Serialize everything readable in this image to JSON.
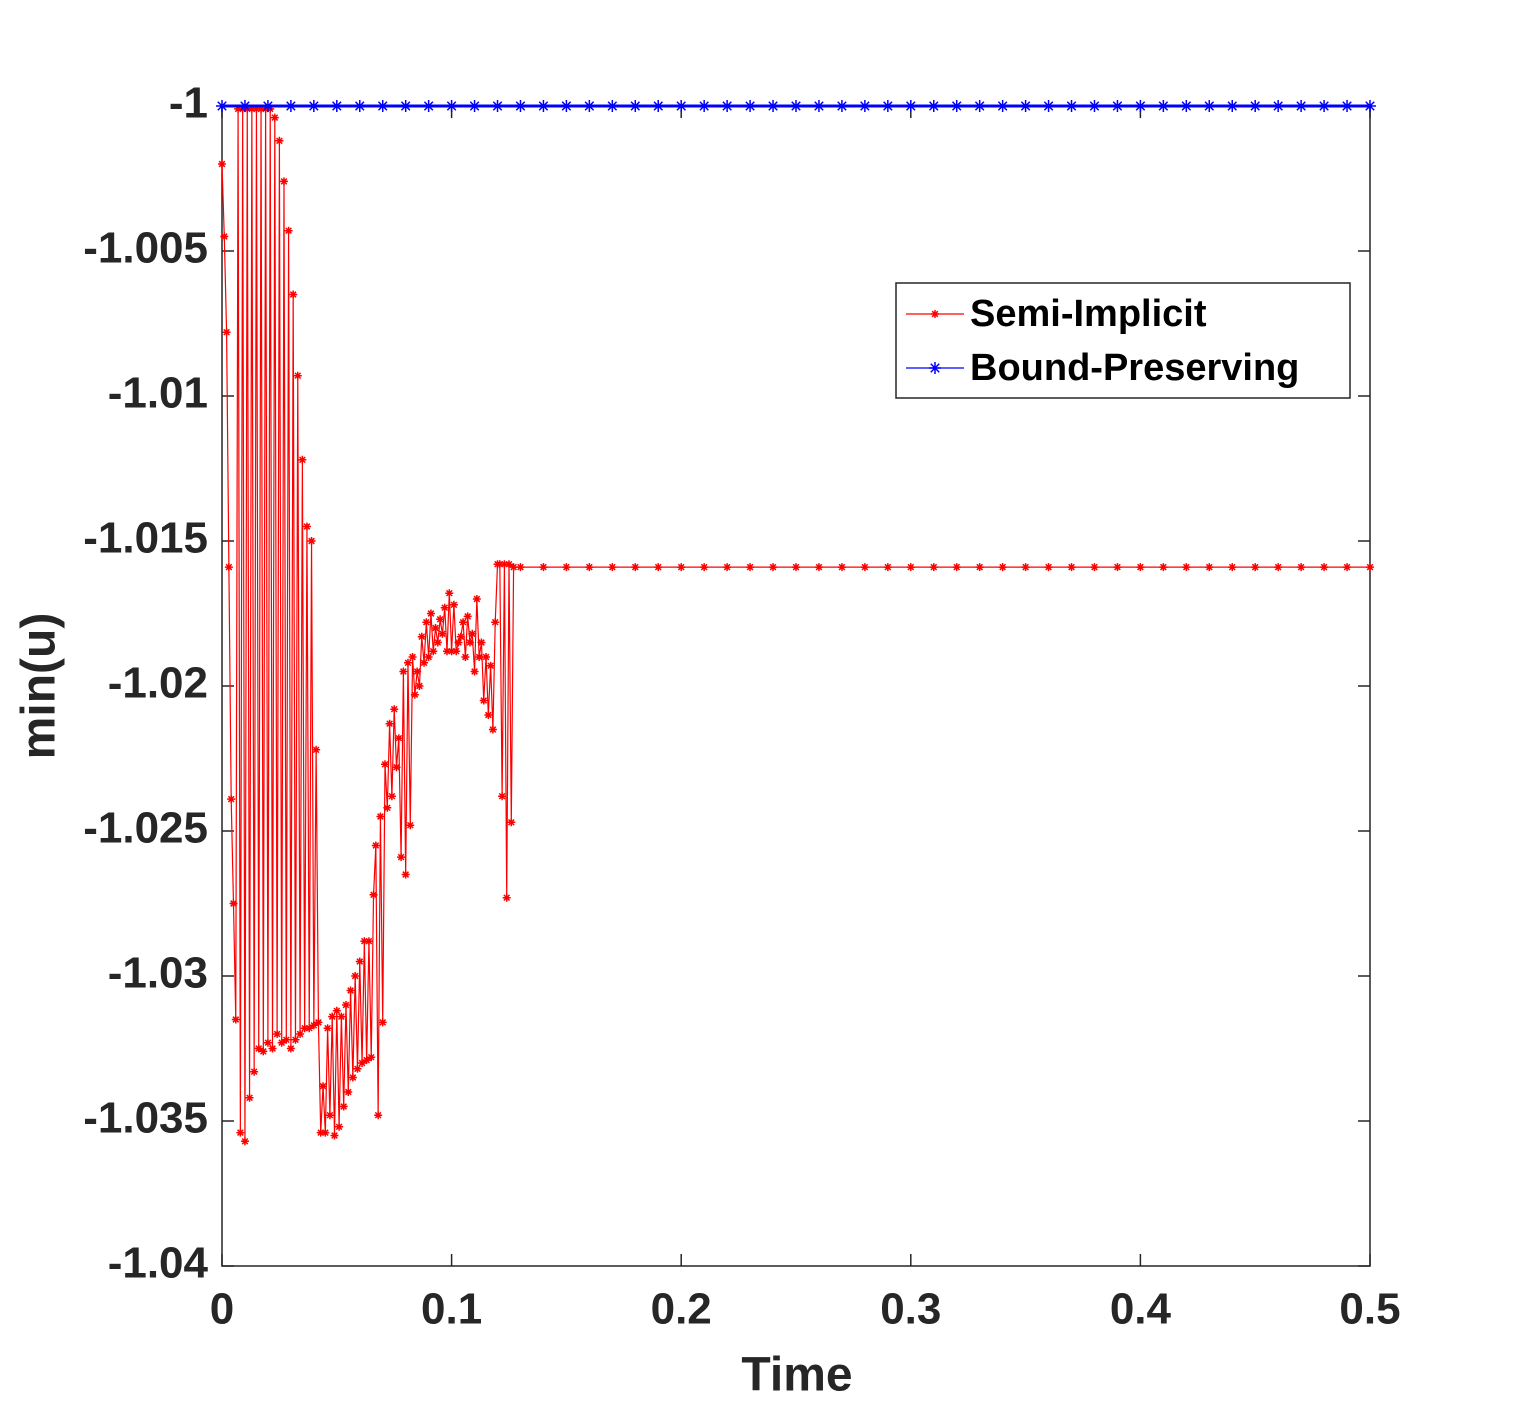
{
  "chart_data": {
    "type": "line",
    "xlabel": "Time",
    "ylabel": "min(u)",
    "xlim": [
      0,
      0.5
    ],
    "ylim": [
      -1.04,
      -1
    ],
    "xticks": [
      0,
      0.1,
      0.2,
      0.3,
      0.4,
      0.5
    ],
    "yticks": [
      -1.04,
      -1.035,
      -1.03,
      -1.025,
      -1.02,
      -1.015,
      -1.01,
      -1.005,
      -1
    ],
    "legend": "upper right",
    "grid": false,
    "series": [
      {
        "name": "Semi-Implicit",
        "color": "#ff0000",
        "x": [
          0,
          0.001,
          0.002,
          0.003,
          0.004,
          0.005,
          0.006,
          0.007,
          0.008,
          0.009,
          0.01,
          0.011,
          0.012,
          0.013,
          0.014,
          0.015,
          0.016,
          0.017,
          0.018,
          0.019,
          0.02,
          0.021,
          0.022,
          0.023,
          0.024,
          0.025,
          0.026,
          0.027,
          0.028,
          0.029,
          0.03,
          0.031,
          0.032,
          0.033,
          0.034,
          0.035,
          0.036,
          0.037,
          0.038,
          0.039,
          0.04,
          0.041,
          0.042,
          0.043,
          0.044,
          0.045,
          0.046,
          0.047,
          0.048,
          0.049,
          0.05,
          0.051,
          0.052,
          0.053,
          0.054,
          0.055,
          0.056,
          0.057,
          0.058,
          0.059,
          0.06,
          0.061,
          0.062,
          0.063,
          0.064,
          0.065,
          0.066,
          0.067,
          0.068,
          0.069,
          0.07,
          0.071,
          0.072,
          0.073,
          0.074,
          0.075,
          0.076,
          0.077,
          0.078,
          0.079,
          0.08,
          0.081,
          0.082,
          0.083,
          0.084,
          0.085,
          0.086,
          0.087,
          0.088,
          0.089,
          0.09,
          0.091,
          0.092,
          0.093,
          0.094,
          0.095,
          0.096,
          0.097,
          0.098,
          0.099,
          0.1,
          0.101,
          0.102,
          0.103,
          0.104,
          0.105,
          0.106,
          0.107,
          0.108,
          0.109,
          0.11,
          0.111,
          0.112,
          0.113,
          0.114,
          0.115,
          0.116,
          0.117,
          0.118,
          0.119,
          0.12,
          0.121,
          0.122,
          0.123,
          0.124,
          0.125,
          0.126,
          0.127,
          0.13,
          0.14,
          0.15,
          0.16,
          0.17,
          0.18,
          0.19,
          0.2,
          0.21,
          0.22,
          0.23,
          0.24,
          0.25,
          0.26,
          0.27,
          0.28,
          0.29,
          0.3,
          0.31,
          0.32,
          0.33,
          0.34,
          0.35,
          0.36,
          0.37,
          0.38,
          0.39,
          0.4,
          0.41,
          0.42,
          0.43,
          0.44,
          0.45,
          0.46,
          0.47,
          0.48,
          0.49,
          0.5
        ],
        "values": [
          -1.002,
          -1.0045,
          -1.0078,
          -1.0159,
          -1.0239,
          -1.0275,
          -1.0315,
          -1.0001,
          -1.0354,
          -1.0001,
          -1.0357,
          -1.0001,
          -1.0342,
          -1.0001,
          -1.0333,
          -1.0001,
          -1.0325,
          -1.0001,
          -1.0326,
          -1.0001,
          -1.0323,
          -1.0001,
          -1.0325,
          -1.0004,
          -1.032,
          -1.0012,
          -1.0323,
          -1.0026,
          -1.0322,
          -1.0043,
          -1.0325,
          -1.0065,
          -1.0322,
          -1.0093,
          -1.032,
          -1.0122,
          -1.0318,
          -1.0145,
          -1.0318,
          -1.015,
          -1.0317,
          -1.0222,
          -1.0316,
          -1.0354,
          -1.0338,
          -1.0354,
          -1.0318,
          -1.0348,
          -1.0314,
          -1.0355,
          -1.0312,
          -1.0352,
          -1.0314,
          -1.0345,
          -1.031,
          -1.034,
          -1.0305,
          -1.0335,
          -1.03,
          -1.0332,
          -1.0295,
          -1.033,
          -1.0288,
          -1.0329,
          -1.0288,
          -1.0328,
          -1.0272,
          -1.0255,
          -1.0348,
          -1.0245,
          -1.0316,
          -1.0227,
          -1.0242,
          -1.0213,
          -1.0238,
          -1.0208,
          -1.0228,
          -1.0218,
          -1.0259,
          -1.0195,
          -1.0265,
          -1.0192,
          -1.0248,
          -1.019,
          -1.0203,
          -1.0195,
          -1.02,
          -1.0183,
          -1.0192,
          -1.0178,
          -1.019,
          -1.0175,
          -1.0188,
          -1.018,
          -1.0185,
          -1.0177,
          -1.0182,
          -1.0173,
          -1.0188,
          -1.0168,
          -1.0188,
          -1.0172,
          -1.0188,
          -1.0185,
          -1.0183,
          -1.0178,
          -1.019,
          -1.0176,
          -1.0185,
          -1.0182,
          -1.0195,
          -1.017,
          -1.019,
          -1.0185,
          -1.0205,
          -1.019,
          -1.021,
          -1.0193,
          -1.0215,
          -1.0178,
          -1.0158,
          -1.0158,
          -1.0238,
          -1.0158,
          -1.0273,
          -1.0158,
          -1.0247,
          -1.0159,
          -1.0159,
          -1.0159,
          -1.0159,
          -1.0159,
          -1.0159,
          -1.0159,
          -1.0159,
          -1.0159,
          -1.0159,
          -1.0159,
          -1.0159,
          -1.0159,
          -1.0159,
          -1.0159,
          -1.0159,
          -1.0159,
          -1.0159,
          -1.0159,
          -1.0159,
          -1.0159,
          -1.0159,
          -1.0159,
          -1.0159,
          -1.0159,
          -1.0159,
          -1.0159,
          -1.0159,
          -1.0159,
          -1.0159,
          -1.0159,
          -1.0159,
          -1.0159,
          -1.0159,
          -1.0159,
          -1.0159,
          -1.0159,
          -1.0159,
          -1.0159
        ]
      },
      {
        "name": "Bound-Preserving",
        "color": "#0000ff",
        "x": [
          0,
          0.01,
          0.02,
          0.03,
          0.04,
          0.05,
          0.06,
          0.07,
          0.08,
          0.09,
          0.1,
          0.11,
          0.12,
          0.13,
          0.14,
          0.15,
          0.16,
          0.17,
          0.18,
          0.19,
          0.2,
          0.21,
          0.22,
          0.23,
          0.24,
          0.25,
          0.26,
          0.27,
          0.28,
          0.29,
          0.3,
          0.31,
          0.32,
          0.33,
          0.34,
          0.35,
          0.36,
          0.37,
          0.38,
          0.39,
          0.4,
          0.41,
          0.42,
          0.43,
          0.44,
          0.45,
          0.46,
          0.47,
          0.48,
          0.49,
          0.5
        ],
        "values": [
          -1,
          -1,
          -1,
          -1,
          -1,
          -1,
          -1,
          -1,
          -1,
          -1,
          -1,
          -1,
          -1,
          -1,
          -1,
          -1,
          -1,
          -1,
          -1,
          -1,
          -1,
          -1,
          -1,
          -1,
          -1,
          -1,
          -1,
          -1,
          -1,
          -1,
          -1,
          -1,
          -1,
          -1,
          -1,
          -1,
          -1,
          -1,
          -1,
          -1,
          -1,
          -1,
          -1,
          -1,
          -1,
          -1,
          -1,
          -1,
          -1,
          -1,
          -1
        ]
      }
    ]
  }
}
